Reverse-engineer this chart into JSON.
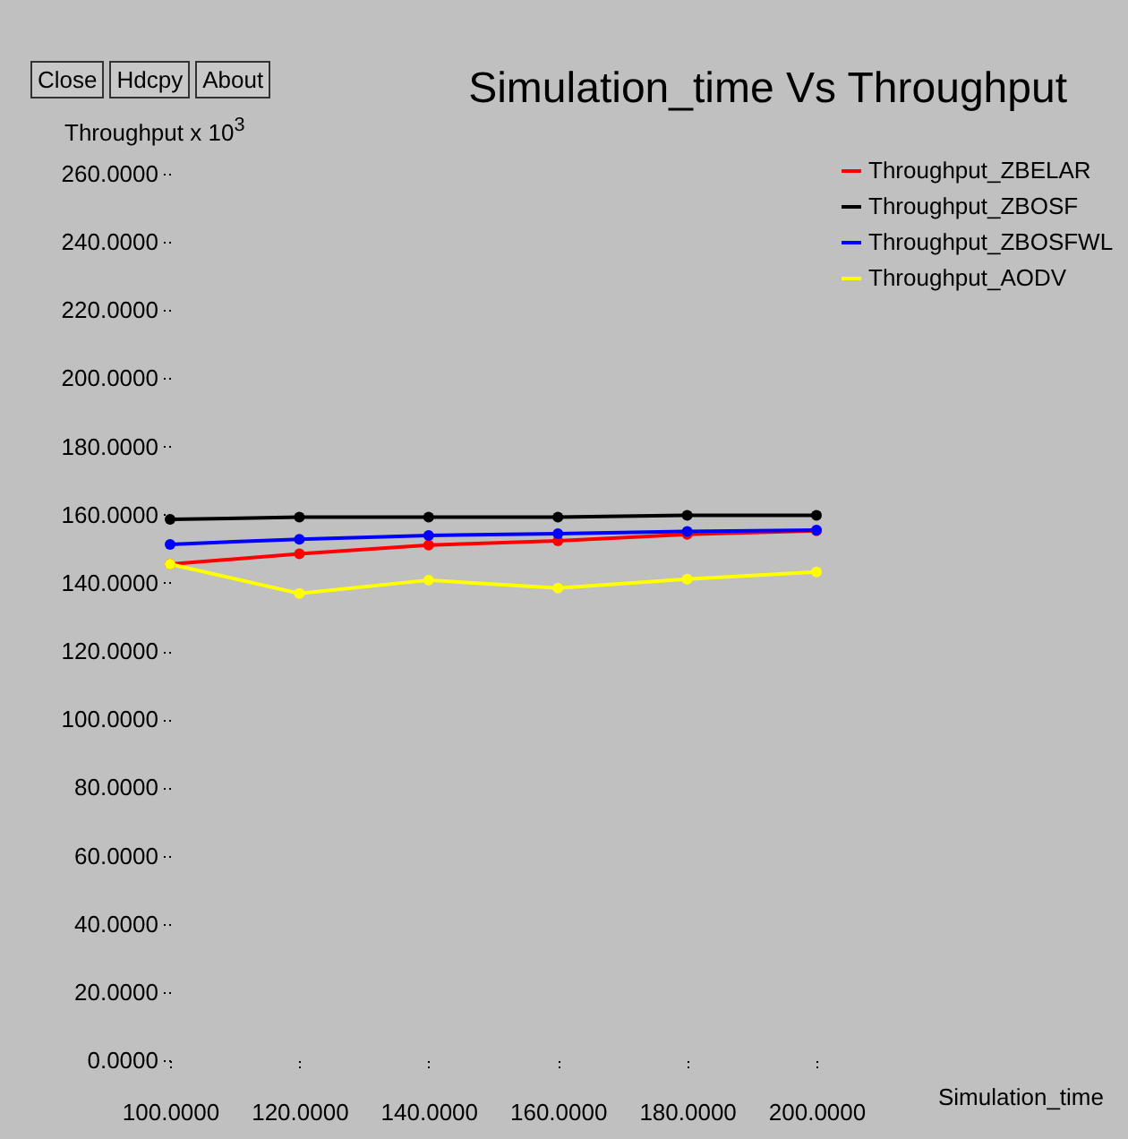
{
  "chart_data": {
    "type": "line",
    "title": "Simulation_time Vs Throughput",
    "xlabel": "Simulation_time",
    "ylabel": "Throughput x 10$^{3}$",
    "annotations": [
      "Close",
      "Hdcpy",
      "About"
    ],
    "x": [
      100,
      120,
      140,
      160,
      180,
      200
    ],
    "series": [
      {
        "name": "Throughput_ZBELAR",
        "color": "#ff0000",
        "values": [
          145.5,
          148.5,
          151.1,
          152.3,
          154.2,
          155.3
        ]
      },
      {
        "name": "Throughput_ZBOSF",
        "color": "#000000",
        "values": [
          158.6,
          159.3,
          159.3,
          159.3,
          159.8,
          159.8
        ]
      },
      {
        "name": "Throughput_ZBOSFWL",
        "color": "#0000ff",
        "values": [
          151.3,
          152.8,
          153.9,
          154.4,
          155.1,
          155.5
        ]
      },
      {
        "name": "Throughput_AODV",
        "color": "#ffff00",
        "values": [
          145.5,
          136.9,
          140.8,
          138.5,
          141.1,
          143.2
        ]
      }
    ],
    "xlim": [
      100,
      200
    ],
    "xticks": [
      {
        "value": 100,
        "label": "100.0000"
      },
      {
        "value": 120,
        "label": "120.0000"
      },
      {
        "value": 140,
        "label": "140.0000"
      },
      {
        "value": 160,
        "label": "160.0000"
      },
      {
        "value": 180,
        "label": "180.0000"
      },
      {
        "value": 200,
        "label": "200.0000"
      }
    ],
    "ylim": [
      0,
      260
    ],
    "yticks": [
      {
        "value": 0,
        "label": "0.0000"
      },
      {
        "value": 20,
        "label": "20.0000"
      },
      {
        "value": 40,
        "label": "40.0000"
      },
      {
        "value": 60,
        "label": "60.0000"
      },
      {
        "value": 80,
        "label": "80.0000"
      },
      {
        "value": 100,
        "label": "100.0000"
      },
      {
        "value": 120,
        "label": "120.0000"
      },
      {
        "value": 140,
        "label": "140.0000"
      },
      {
        "value": 160,
        "label": "160.0000"
      },
      {
        "value": 180,
        "label": "180.0000"
      },
      {
        "value": 200,
        "label": "200.0000"
      },
      {
        "value": 220,
        "label": "220.0000"
      },
      {
        "value": 240,
        "label": "240.0000"
      },
      {
        "value": 260,
        "label": "260.0000"
      }
    ],
    "grid": false,
    "legend": "top right",
    "marker": "circle",
    "line_style": "solid"
  }
}
